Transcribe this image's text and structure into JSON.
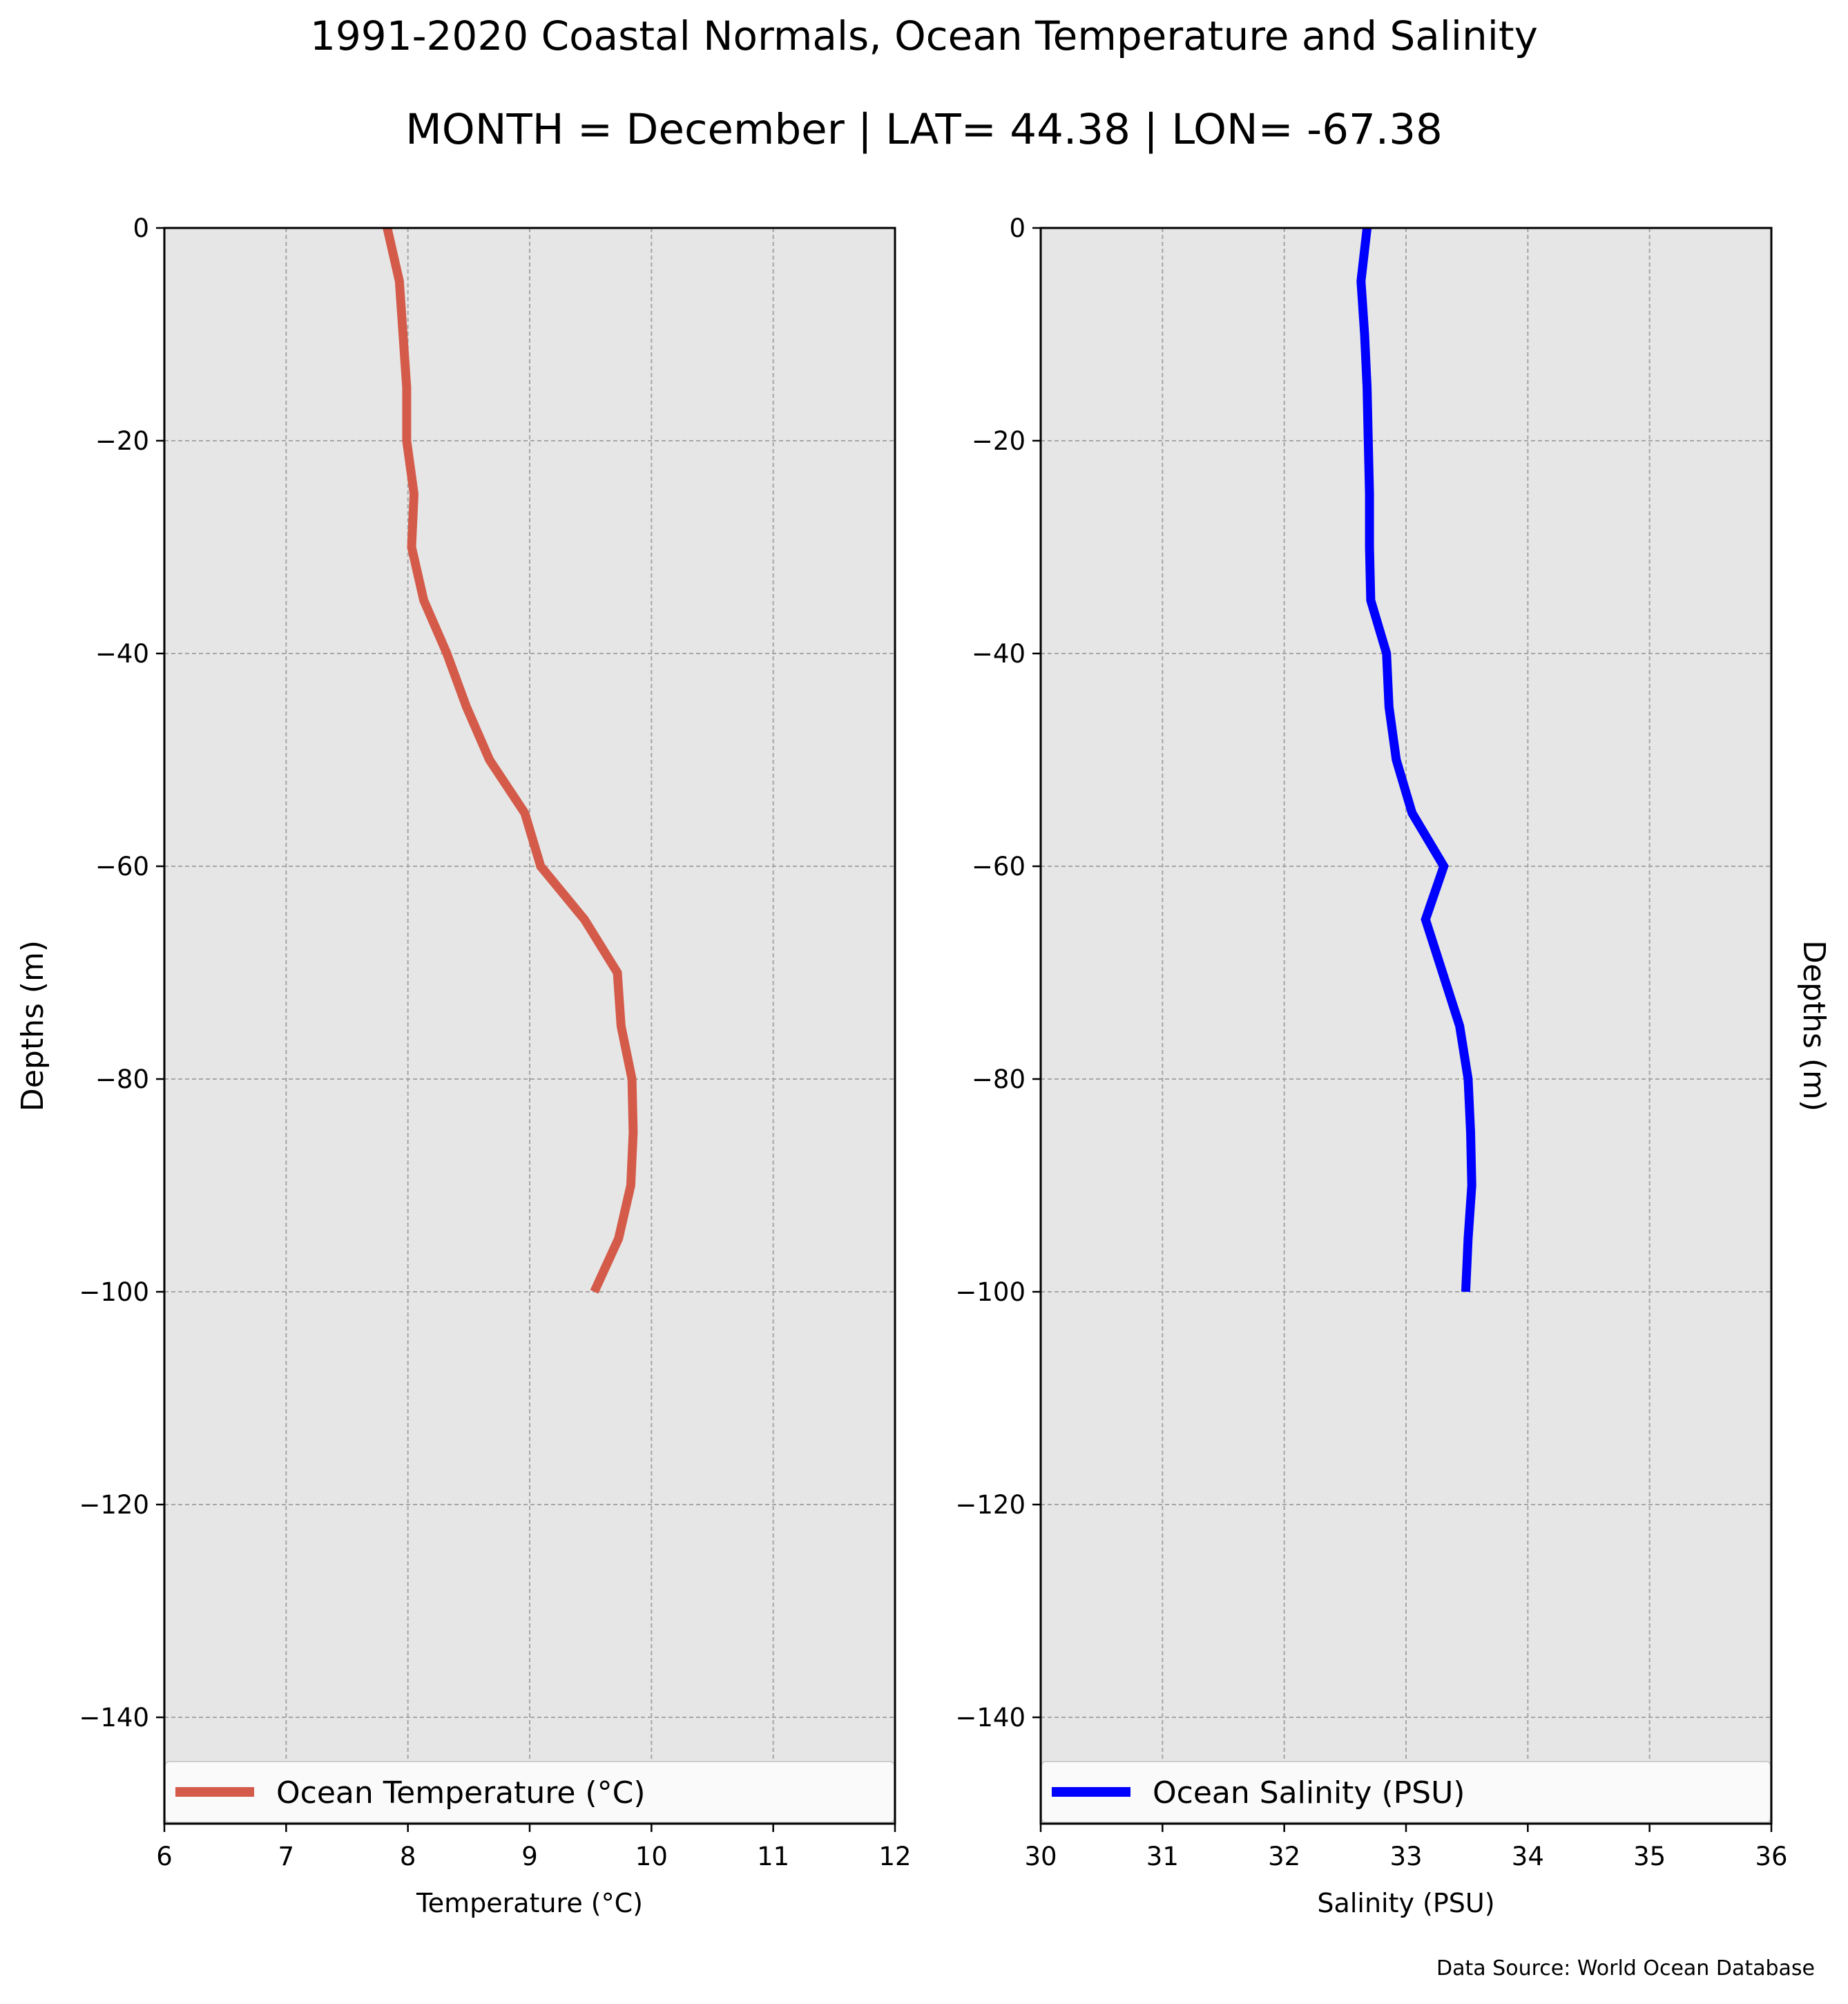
{
  "figure": {
    "title": "1991-2020 Coastal Normals, Ocean Temperature and Salinity",
    "subtitle": "MONTH = December | LAT= 44.38 | LON= -67.38",
    "source": "Data Source: World Ocean Database"
  },
  "colors": {
    "panel_background": "#e6e6e6",
    "grid": "#a6a6a6",
    "temperature_line": "#d45b4a",
    "salinity_line": "#0000ff"
  },
  "chart_data": [
    {
      "type": "line",
      "id": "temperature",
      "xlabel": "Temperature (°C)",
      "ylabel": "Depths (m)",
      "ylabel_side": "left",
      "xlim": [
        6,
        12
      ],
      "ylim": [
        -150,
        0
      ],
      "xticks": [
        6,
        7,
        8,
        9,
        10,
        11,
        12
      ],
      "xtick_labels": [
        "6",
        "7",
        "8",
        "9",
        "10",
        "11",
        "12"
      ],
      "yticks": [
        0,
        -20,
        -40,
        -60,
        -80,
        -100,
        -120,
        -140
      ],
      "ytick_labels": [
        "0",
        "−20",
        "−40",
        "−60",
        "−80",
        "−100",
        "−120",
        "−140"
      ],
      "grid": true,
      "legend_position": "bottom",
      "color": "#d45b4a",
      "series": [
        {
          "name": "Ocean Temperature (°C)",
          "x": [
            7.83,
            7.93,
            7.96,
            7.99,
            7.99,
            8.05,
            8.03,
            8.13,
            8.32,
            8.48,
            8.67,
            8.96,
            9.09,
            9.45,
            9.72,
            9.75,
            9.84,
            9.85,
            9.83,
            9.73,
            9.53
          ],
          "depth": [
            0,
            -5,
            -10,
            -15,
            -20,
            -25,
            -30,
            -35,
            -40,
            -45,
            -50,
            -55,
            -60,
            -65,
            -70,
            -75,
            -80,
            -85,
            -90,
            -95,
            -100
          ]
        }
      ]
    },
    {
      "type": "line",
      "id": "salinity",
      "xlabel": "Salinity (PSU)",
      "ylabel": "Depths (m)",
      "ylabel_side": "right",
      "xlim": [
        30,
        36
      ],
      "ylim": [
        -150,
        0
      ],
      "xticks": [
        30,
        31,
        32,
        33,
        34,
        35,
        36
      ],
      "xtick_labels": [
        "30",
        "31",
        "32",
        "33",
        "34",
        "35",
        "36"
      ],
      "yticks": [
        0,
        -20,
        -40,
        -60,
        -80,
        -100,
        -120,
        -140
      ],
      "ytick_labels": [
        "0",
        "−20",
        "−40",
        "−60",
        "−80",
        "−100",
        "−120",
        "−140"
      ],
      "grid": true,
      "legend_position": "bottom",
      "color": "#0000ff",
      "series": [
        {
          "name": "Ocean Salinity (PSU)",
          "x": [
            32.68,
            32.63,
            32.66,
            32.68,
            32.69,
            32.7,
            32.7,
            32.71,
            32.84,
            32.86,
            32.92,
            33.05,
            33.31,
            33.16,
            33.3,
            33.44,
            33.51,
            33.53,
            33.54,
            33.51,
            33.49
          ],
          "depth": [
            0,
            -5,
            -10,
            -15,
            -20,
            -25,
            -30,
            -35,
            -40,
            -45,
            -50,
            -55,
            -60,
            -65,
            -70,
            -75,
            -80,
            -85,
            -90,
            -95,
            -100
          ]
        }
      ]
    }
  ]
}
